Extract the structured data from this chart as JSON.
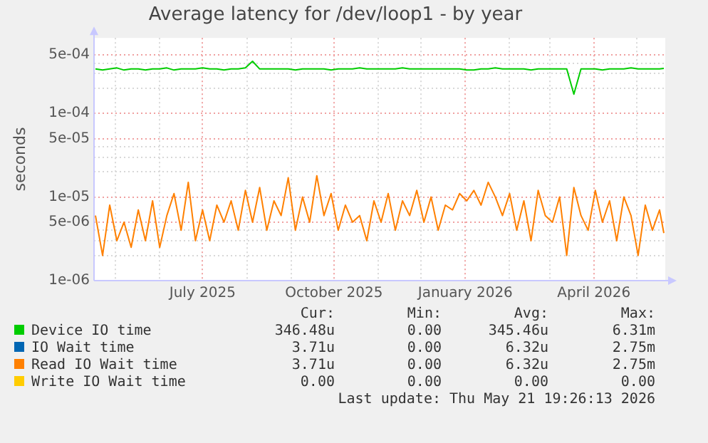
{
  "chart_data": {
    "type": "line",
    "title": "Average latency for /dev/loop1 - by year",
    "ylabel": "seconds",
    "log": "y",
    "grid": true,
    "legend": "bottom",
    "marker": "none",
    "line_style": "solid",
    "x": [
      "2025-04-17",
      "2025-04-22",
      "2025-04-27",
      "2025-05-02",
      "2025-05-07",
      "2025-05-12",
      "2025-05-17",
      "2025-05-22",
      "2025-05-27",
      "2025-06-01",
      "2025-06-06",
      "2025-06-11",
      "2025-06-16",
      "2025-06-21",
      "2025-06-26",
      "2025-07-01",
      "2025-07-06",
      "2025-07-11",
      "2025-07-16",
      "2025-07-21",
      "2025-07-26",
      "2025-07-31",
      "2025-08-05",
      "2025-08-10",
      "2025-08-15",
      "2025-08-20",
      "2025-08-25",
      "2025-08-30",
      "2025-09-04",
      "2025-09-09",
      "2025-09-14",
      "2025-09-19",
      "2025-09-24",
      "2025-09-29",
      "2025-10-04",
      "2025-10-09",
      "2025-10-14",
      "2025-10-19",
      "2025-10-24",
      "2025-10-29",
      "2025-11-03",
      "2025-11-08",
      "2025-11-13",
      "2025-11-18",
      "2025-11-23",
      "2025-11-28",
      "2025-12-03",
      "2025-12-08",
      "2025-12-13",
      "2025-12-18",
      "2025-12-23",
      "2025-12-28",
      "2026-01-02",
      "2026-01-07",
      "2026-01-12",
      "2026-01-17",
      "2026-01-22",
      "2026-01-27",
      "2026-02-01",
      "2026-02-06",
      "2026-02-11",
      "2026-02-16",
      "2026-02-21",
      "2026-02-26",
      "2026-03-03",
      "2026-03-08",
      "2026-03-13",
      "2026-03-18",
      "2026-03-23",
      "2026-03-28",
      "2026-04-02",
      "2026-04-07",
      "2026-04-12",
      "2026-04-17",
      "2026-04-22",
      "2026-04-27",
      "2026-05-02",
      "2026-05-07",
      "2026-05-12",
      "2026-05-17",
      "2026-05-20"
    ],
    "xlim": [
      "2025-04-16",
      "2026-05-21"
    ],
    "xticks": [
      {
        "value": "2025-05-01",
        "label": null
      },
      {
        "value": "2025-06-01",
        "label": null
      },
      {
        "value": "2025-07-01",
        "label": "July 2025"
      },
      {
        "value": "2025-08-01",
        "label": null
      },
      {
        "value": "2025-09-01",
        "label": null
      },
      {
        "value": "2025-10-01",
        "label": "October 2025"
      },
      {
        "value": "2025-11-01",
        "label": null
      },
      {
        "value": "2025-12-01",
        "label": null
      },
      {
        "value": "2026-01-01",
        "label": "January 2026"
      },
      {
        "value": "2026-02-01",
        "label": null
      },
      {
        "value": "2026-03-01",
        "label": null
      },
      {
        "value": "2026-04-01",
        "label": "April 2026"
      },
      {
        "value": "2026-05-01",
        "label": null
      }
    ],
    "ylim": [
      1e-06,
      0.0008
    ],
    "yticks": [
      {
        "value": 1e-06,
        "label": "1e-06"
      },
      {
        "value": 2e-06,
        "label": null
      },
      {
        "value": 3e-06,
        "label": null
      },
      {
        "value": 4e-06,
        "label": null
      },
      {
        "value": 5e-06,
        "label": "5e-06"
      },
      {
        "value": 1e-05,
        "label": "1e-05"
      },
      {
        "value": 2e-05,
        "label": null
      },
      {
        "value": 3e-05,
        "label": null
      },
      {
        "value": 4e-05,
        "label": null
      },
      {
        "value": 5e-05,
        "label": "5e-05"
      },
      {
        "value": 0.0001,
        "label": "1e-04"
      },
      {
        "value": 0.0002,
        "label": null
      },
      {
        "value": 0.0003,
        "label": null
      },
      {
        "value": 0.0004,
        "label": null
      },
      {
        "value": 0.0005,
        "label": "5e-04"
      }
    ],
    "series": [
      {
        "name": "Device IO time",
        "color": "#00cc00",
        "values": [
          0.00034,
          0.00033,
          0.00034,
          0.00035,
          0.00033,
          0.00034,
          0.00034,
          0.00033,
          0.00034,
          0.00034,
          0.00035,
          0.00033,
          0.00034,
          0.00034,
          0.00034,
          0.00035,
          0.00034,
          0.00034,
          0.00033,
          0.00034,
          0.00034,
          0.00035,
          0.00042,
          0.00034,
          0.00034,
          0.00034,
          0.00034,
          0.00034,
          0.00033,
          0.00034,
          0.00034,
          0.00034,
          0.00034,
          0.00033,
          0.00034,
          0.00034,
          0.00034,
          0.00035,
          0.00034,
          0.00034,
          0.00034,
          0.00034,
          0.00034,
          0.00035,
          0.00034,
          0.00034,
          0.00034,
          0.00034,
          0.00034,
          0.00034,
          0.00034,
          0.00034,
          0.00033,
          0.00033,
          0.00034,
          0.00034,
          0.00035,
          0.00034,
          0.00034,
          0.00034,
          0.00034,
          0.00033,
          0.00034,
          0.00034,
          0.00034,
          0.00034,
          0.00034,
          0.00017,
          0.00034,
          0.00034,
          0.00034,
          0.00033,
          0.00034,
          0.00034,
          0.00034,
          0.00035,
          0.00034,
          0.00034,
          0.00034,
          0.00034,
          0.000346
        ]
      },
      {
        "name": "IO Wait time",
        "color": "#0066b3",
        "values": [
          null,
          null,
          null,
          null,
          null,
          null,
          null,
          null,
          null,
          null,
          null,
          null,
          null,
          null,
          null,
          null,
          null,
          null,
          null,
          null,
          null,
          null,
          null,
          null,
          null,
          null,
          null,
          null,
          null,
          null,
          null,
          null,
          null,
          null,
          null,
          null,
          null,
          null,
          null,
          null,
          null,
          null,
          null,
          null,
          null,
          null,
          null,
          null,
          null,
          null,
          null,
          null,
          null,
          null,
          null,
          null,
          null,
          null,
          null,
          null,
          null,
          null,
          null,
          null,
          null,
          null,
          null,
          null,
          null,
          null,
          null,
          null,
          null,
          null,
          null,
          null,
          null,
          null,
          null,
          null,
          null
        ]
      },
      {
        "name": "Read IO Wait time",
        "color": "#ff8000",
        "values": [
          6e-06,
          2e-06,
          8e-06,
          3e-06,
          5e-06,
          2.5e-06,
          7e-06,
          3e-06,
          9e-06,
          2.5e-06,
          6e-06,
          1.1e-05,
          4e-06,
          1.5e-05,
          3e-06,
          7e-06,
          3e-06,
          8e-06,
          5e-06,
          9e-06,
          4e-06,
          1.2e-05,
          5e-06,
          1.3e-05,
          4e-06,
          9e-06,
          6e-06,
          1.7e-05,
          4e-06,
          1e-05,
          5e-06,
          1.8e-05,
          6e-06,
          1.1e-05,
          4e-06,
          8e-06,
          5e-06,
          6e-06,
          3e-06,
          9e-06,
          5e-06,
          1.1e-05,
          4e-06,
          9e-06,
          6e-06,
          1.2e-05,
          5e-06,
          1e-05,
          4e-06,
          8e-06,
          7e-06,
          1.1e-05,
          9e-06,
          1.2e-05,
          8e-06,
          1.5e-05,
          1e-05,
          6e-06,
          1.1e-05,
          4e-06,
          9e-06,
          3e-06,
          1.2e-05,
          6e-06,
          5e-06,
          1e-05,
          2e-06,
          1.3e-05,
          6e-06,
          4e-06,
          1.2e-05,
          5e-06,
          9e-06,
          3e-06,
          1e-05,
          6e-06,
          2e-06,
          8e-06,
          4e-06,
          7e-06,
          3.7e-06
        ]
      },
      {
        "name": "Write IO Wait time",
        "color": "#ffcc00",
        "values": [
          null,
          null,
          null,
          null,
          null,
          null,
          null,
          null,
          null,
          null,
          null,
          null,
          null,
          null,
          null,
          null,
          null,
          null,
          null,
          null,
          null,
          null,
          null,
          null,
          null,
          null,
          null,
          null,
          null,
          null,
          null,
          null,
          null,
          null,
          null,
          null,
          null,
          null,
          null,
          null,
          null,
          null,
          null,
          null,
          null,
          null,
          null,
          null,
          null,
          null,
          null,
          null,
          null,
          null,
          null,
          null,
          null,
          null,
          null,
          null,
          null,
          null,
          null,
          null,
          null,
          null,
          null,
          null,
          null,
          null,
          null,
          null,
          null,
          null,
          null,
          null,
          null,
          null,
          null,
          null,
          null
        ]
      }
    ],
    "annotations": [
      "Cur:",
      "Min:",
      "Avg:",
      "Max:",
      "346.48u",
      "0.00",
      "345.46u",
      "6.31m",
      "3.71u",
      "0.00",
      "6.32u",
      "2.75m",
      "3.71u",
      "0.00",
      "6.32u",
      "2.75m",
      "0.00",
      "0.00",
      "0.00",
      "0.00",
      "Last update: Thu May 21 19:26:13 2026"
    ]
  }
}
